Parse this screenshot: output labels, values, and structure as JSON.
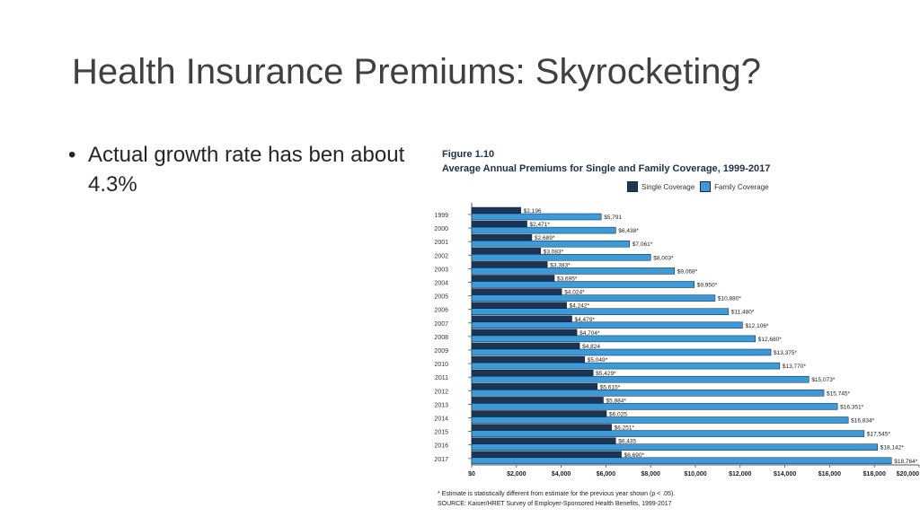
{
  "slide": {
    "title": "Health Insurance Premiums: Skyrocketing?",
    "bullets": [
      "Actual growth rate has ben about 4.3%"
    ]
  },
  "colors": {
    "single": "#1b3556",
    "family": "#3b9ad9"
  },
  "chart_data": {
    "type": "bar",
    "orientation": "horizontal",
    "figure_label": "Figure 1.10",
    "title": "Average Annual Premiums for Single and Family Coverage, 1999-2017",
    "categories": [
      "1999",
      "2000",
      "2001",
      "2002",
      "2003",
      "2004",
      "2005",
      "2006",
      "2007",
      "2008",
      "2009",
      "2010",
      "2011",
      "2012",
      "2013",
      "2014",
      "2015",
      "2016",
      "2017"
    ],
    "series": [
      {
        "name": "Single Coverage",
        "values": [
          2196,
          2471,
          2689,
          3083,
          3383,
          3695,
          4024,
          4242,
          4479,
          4704,
          4824,
          5049,
          5429,
          5615,
          5884,
          6025,
          6251,
          6435,
          6690
        ],
        "labels": [
          "$2,196",
          "$2,471*",
          "$2,689*",
          "$3,083*",
          "$3,383*",
          "$3,695*",
          "$4,024*",
          "$4,242*",
          "$4,479*",
          "$4,704*",
          "$4,824",
          "$5,049*",
          "$5,429*",
          "$5,615*",
          "$5,884*",
          "$6,025",
          "$6,251*",
          "$6,435",
          "$6,690*"
        ]
      },
      {
        "name": "Family Coverage",
        "values": [
          5791,
          6438,
          7061,
          8003,
          9068,
          9950,
          10880,
          11480,
          12106,
          12680,
          13375,
          13770,
          15073,
          15745,
          16351,
          16834,
          17545,
          18142,
          18764
        ],
        "labels": [
          "$5,791",
          "$6,438*",
          "$7,061*",
          "$8,003*",
          "$9,068*",
          "$9,950*",
          "$10,880*",
          "$11,480*",
          "$12,106*",
          "$12,680*",
          "$13,375*",
          "$13,770*",
          "$15,073*",
          "$15,745*",
          "$16,351*",
          "$16,834*",
          "$17,545*",
          "$18,142*",
          "$18,764*"
        ]
      }
    ],
    "x_ticks": [
      "$0",
      "$2,000",
      "$4,000",
      "$6,000",
      "$8,000",
      "$10,000",
      "$12,000",
      "$14,000",
      "$16,000",
      "$18,000",
      "$20,000"
    ],
    "xlim": [
      0,
      20000
    ],
    "legend_position": "top-right",
    "grid": false,
    "notes": [
      "* Estimate is statistically different from estimate for the previous year shown (p < .05).",
      "SOURCE: Kaiser/HRET Survey of Employer-Sponsored Health Benefits, 1999-2017"
    ]
  }
}
